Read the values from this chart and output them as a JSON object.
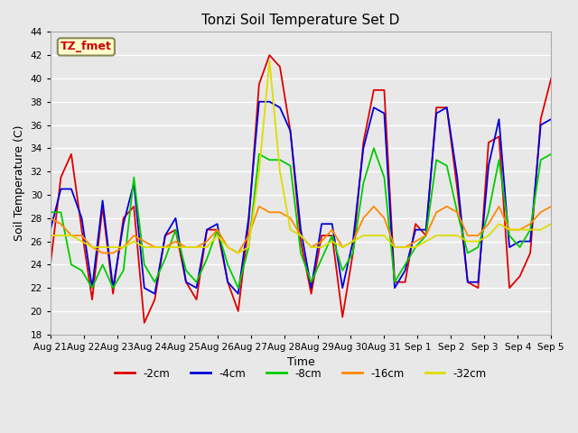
{
  "title": "Tonzi Soil Temperature Set D",
  "xlabel": "Time",
  "ylabel": "Soil Temperature (C)",
  "ylim": [
    18,
    44
  ],
  "yticks": [
    18,
    20,
    22,
    24,
    26,
    28,
    30,
    32,
    34,
    36,
    38,
    40,
    42,
    44
  ],
  "annotation_label": "TZ_fmet",
  "annotation_color": "#cc0000",
  "annotation_bg": "#ffffcc",
  "annotation_border": "#888855",
  "colors": {
    "-2cm": "#dd0000",
    "-4cm": "#0000dd",
    "-8cm": "#00cc00",
    "-16cm": "#ff8800",
    "-32cm": "#dddd00"
  },
  "x_labels": [
    "Aug 21",
    "Aug 22",
    "Aug 23",
    "Aug 24",
    "Aug 25",
    "Aug 26",
    "Aug 27",
    "Aug 28",
    "Aug 29",
    "Aug 30",
    "Aug 31",
    "Sep 1",
    "Sep 2",
    "Sep 3",
    "Sep 4",
    "Sep 5"
  ],
  "background_color": "#e8e8e8",
  "legend_entries": [
    "-2cm",
    "-4cm",
    "-8cm",
    "-16cm",
    "-32cm"
  ],
  "series": {
    "-2cm": [
      24.0,
      31.5,
      33.5,
      27.0,
      21.0,
      29.0,
      21.5,
      28.0,
      29.0,
      19.0,
      21.0,
      26.5,
      27.0,
      22.5,
      21.0,
      27.0,
      27.0,
      22.5,
      20.0,
      27.5,
      39.5,
      42.0,
      41.0,
      35.5,
      26.0,
      21.5,
      26.5,
      26.5,
      19.5,
      25.0,
      34.5,
      39.0,
      39.0,
      22.5,
      22.5,
      27.5,
      26.5,
      37.5,
      37.5,
      30.5,
      22.5,
      22.0,
      34.5,
      35.0,
      22.0,
      23.0,
      25.0,
      36.5,
      40.0
    ],
    "-4cm": [
      27.0,
      30.5,
      30.5,
      28.0,
      22.0,
      29.5,
      22.0,
      27.5,
      31.0,
      22.0,
      21.5,
      26.5,
      28.0,
      22.5,
      22.0,
      27.0,
      27.5,
      22.5,
      21.5,
      28.0,
      38.0,
      38.0,
      37.5,
      35.5,
      27.0,
      22.0,
      27.5,
      27.5,
      22.0,
      26.0,
      34.0,
      37.5,
      37.0,
      22.0,
      23.5,
      27.0,
      27.0,
      37.0,
      37.5,
      31.5,
      22.5,
      22.5,
      32.5,
      36.5,
      25.5,
      26.0,
      26.0,
      36.0,
      36.5
    ],
    "-8cm": [
      28.5,
      28.5,
      24.0,
      23.5,
      22.0,
      24.0,
      22.0,
      23.5,
      31.5,
      24.0,
      22.5,
      24.5,
      27.0,
      23.5,
      22.5,
      24.5,
      27.0,
      24.0,
      22.0,
      25.5,
      33.5,
      33.0,
      33.0,
      32.5,
      25.0,
      22.5,
      24.5,
      26.5,
      23.5,
      25.0,
      31.0,
      34.0,
      31.5,
      22.5,
      24.0,
      25.5,
      26.5,
      33.0,
      32.5,
      28.5,
      25.0,
      25.5,
      28.5,
      33.0,
      26.5,
      25.5,
      27.0,
      33.0,
      33.5
    ],
    "-16cm": [
      28.0,
      27.5,
      26.5,
      26.5,
      25.5,
      25.0,
      25.0,
      25.5,
      26.5,
      26.0,
      25.5,
      25.5,
      26.0,
      25.5,
      25.5,
      26.0,
      27.0,
      25.5,
      25.0,
      26.5,
      29.0,
      28.5,
      28.5,
      28.0,
      26.5,
      25.5,
      26.0,
      27.0,
      25.5,
      26.0,
      28.0,
      29.0,
      28.0,
      25.5,
      25.5,
      26.0,
      26.5,
      28.5,
      29.0,
      28.5,
      26.5,
      26.5,
      27.5,
      29.0,
      27.0,
      27.0,
      27.5,
      28.5,
      29.0
    ],
    "-32cm": [
      26.5,
      26.5,
      26.5,
      26.0,
      25.5,
      25.5,
      25.5,
      25.5,
      26.0,
      25.5,
      25.5,
      25.5,
      25.5,
      25.5,
      25.5,
      25.5,
      26.5,
      25.5,
      25.0,
      25.5,
      32.0,
      41.5,
      32.0,
      27.0,
      26.5,
      25.5,
      25.5,
      26.0,
      25.5,
      26.0,
      26.5,
      26.5,
      26.5,
      25.5,
      25.5,
      25.5,
      26.0,
      26.5,
      26.5,
      26.5,
      26.0,
      26.0,
      26.5,
      27.5,
      27.0,
      27.0,
      27.0,
      27.0,
      27.5
    ]
  }
}
